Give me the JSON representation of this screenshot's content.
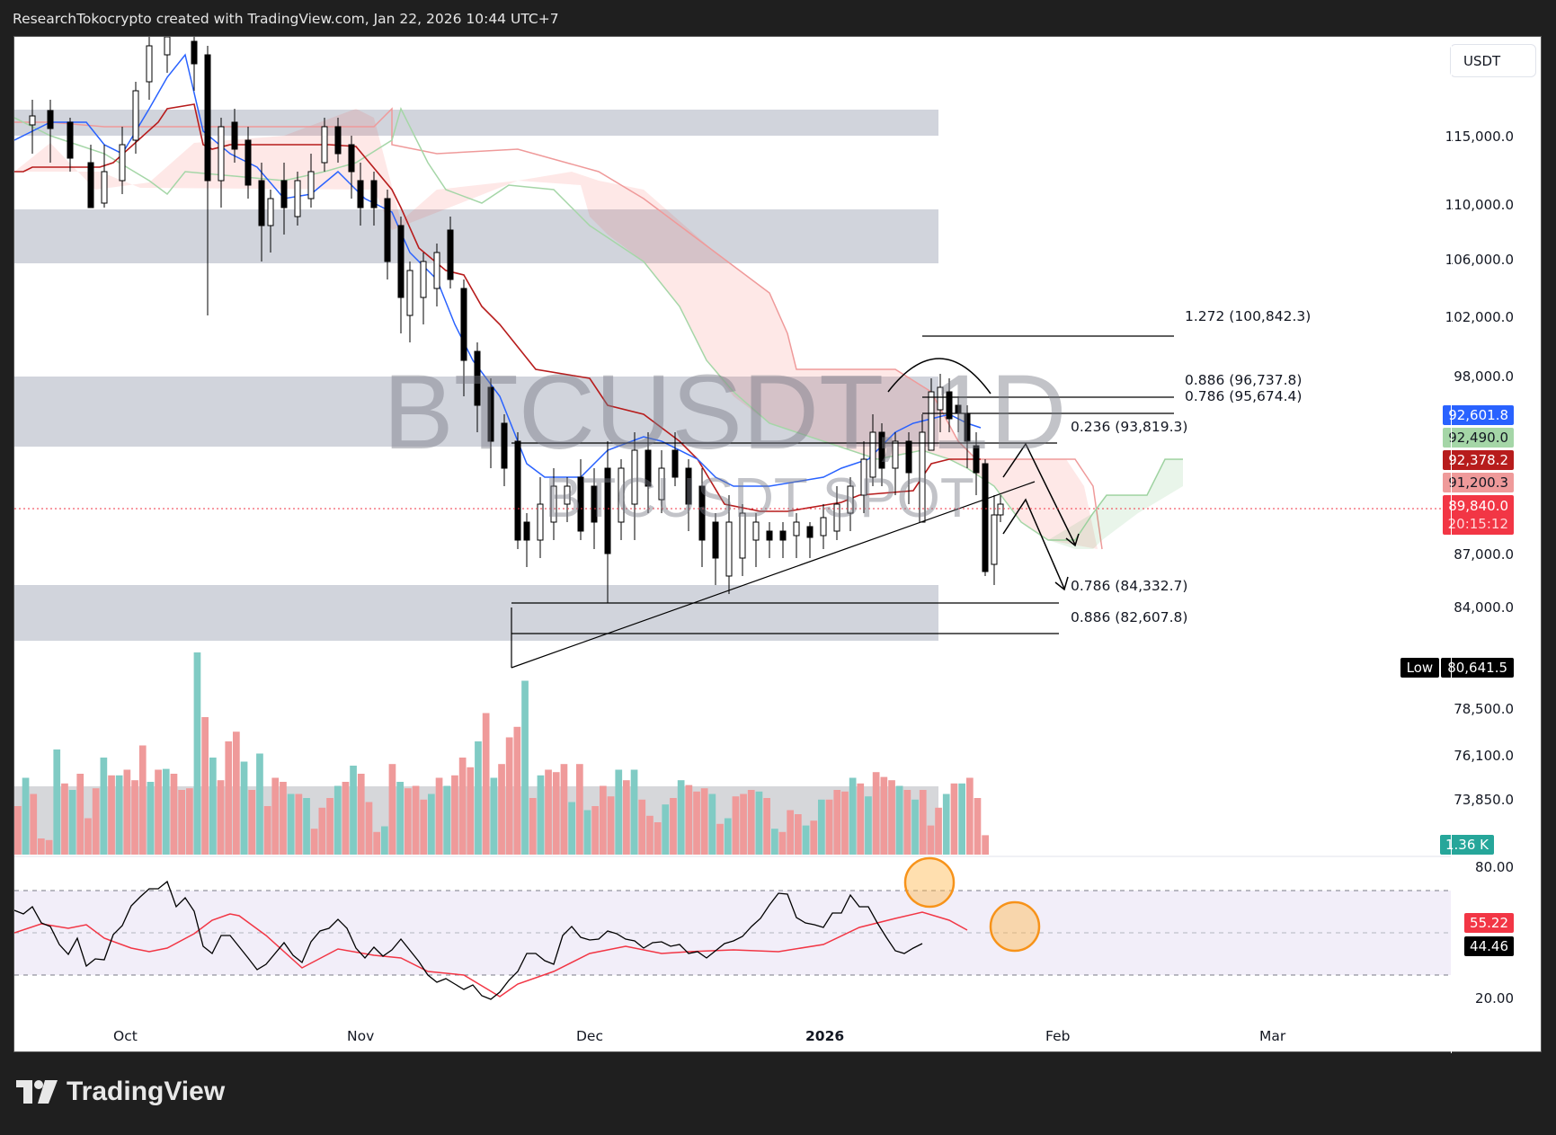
{
  "header": {
    "attribution": "ResearchTokocrypto created with TradingView.com, Jan 22, 2026 10:44 UTC+7"
  },
  "chart": {
    "symbol_watermark": "BTCUSDT, 1D",
    "symbol_subtitle": "BTCUSDT SPOT",
    "currency_button": "USDT",
    "price_axis": [
      "115,000.0",
      "110,000.0",
      "106,000.0",
      "102,000.0",
      "98,000.0",
      "87,000.0",
      "84,000.0",
      "78,500.0",
      "76,100.0",
      "73,850.0"
    ],
    "price_tags": [
      {
        "label": "92,601.8",
        "color": "#2962ff",
        "text": "#ffffff"
      },
      {
        "label": "92,490.0",
        "color": "#a5d6a7",
        "text": "#131722"
      },
      {
        "label": "92,378.2",
        "color": "#b71c1c",
        "text": "#ffffff"
      },
      {
        "label": "91,200.3",
        "color": "#ef9a9a",
        "text": "#131722"
      },
      {
        "label": "89,840.0",
        "color": "#f23645",
        "text": "#ffffff"
      },
      {
        "label": "20:15:12",
        "color": "#f23645",
        "text": "#ffd6d9"
      }
    ],
    "low_tag": {
      "label": "Low",
      "value": "80,641.5"
    },
    "volume_tag": "1.36 K",
    "rsi_axis": [
      "80.00",
      "20.00"
    ],
    "rsi_tags": [
      {
        "label": "55.22",
        "color": "#f23645"
      },
      {
        "label": "44.46",
        "color": "#000000"
      }
    ],
    "time_axis": [
      "Oct",
      "Nov",
      "Dec",
      "2026",
      "Feb",
      "Mar"
    ],
    "fib_labels": [
      "1.272 (100,842.3)",
      "0.886 (96,737.8)",
      "0.786 (95,674.4)",
      "0.236 (93,819.3)",
      "0.786 (84,332.7)",
      "0.886 (82,607.8)"
    ]
  },
  "footer": {
    "brand": "TradingView"
  },
  "chart_data": {
    "type": "candlestick",
    "title": "BTCUSDT, 1D",
    "subtitle": "BTCUSDT SPOT",
    "currency": "USDT",
    "x_ticks": [
      "Oct",
      "Nov",
      "Dec",
      "2026",
      "Feb",
      "Mar"
    ],
    "y_ticks": [
      73850,
      76100,
      78500,
      84000,
      87000,
      98000,
      102000,
      106000,
      110000,
      115000
    ],
    "last_price": 89840.0,
    "countdown": "20:15:12",
    "period_low": 80641.5,
    "ichimoku": {
      "conversion_line": 92601.8,
      "leading_span_a": 92490.0,
      "base_line": 92378.2,
      "leading_span_b": 91200.3
    },
    "fibonacci_levels": [
      {
        "ratio": 1.272,
        "price": 100842.3
      },
      {
        "ratio": 0.886,
        "price": 96737.8
      },
      {
        "ratio": 0.786,
        "price": 95674.4
      },
      {
        "ratio": 0.236,
        "price": 93819.3
      },
      {
        "ratio": 0.786,
        "price": 84332.7
      },
      {
        "ratio": 0.886,
        "price": 82607.8
      }
    ],
    "resistance_zones": [
      [
        115000,
        117000
      ],
      [
        105800,
        109500
      ],
      [
        93800,
        98800
      ]
    ],
    "support_zones": [
      [
        81800,
        85600
      ]
    ],
    "volume_last": "1.36K",
    "rsi": {
      "value": 44.46,
      "ma": 55.22,
      "upper": 70,
      "middle": 50,
      "lower": 30,
      "axis": [
        20,
        80
      ]
    },
    "approx_closes": [
      {
        "date": "Sep 20",
        "close": 116000
      },
      {
        "date": "Oct 1",
        "close": 118500
      },
      {
        "date": "Oct 6",
        "close": 124500
      },
      {
        "date": "Oct 10",
        "close": 112800
      },
      {
        "date": "Oct 17",
        "close": 106500
      },
      {
        "date": "Oct 27",
        "close": 114000
      },
      {
        "date": "Nov 4",
        "close": 101500
      },
      {
        "date": "Nov 11",
        "close": 103000
      },
      {
        "date": "Nov 18",
        "close": 92000
      },
      {
        "date": "Nov 21",
        "close": 84500
      },
      {
        "date": "Nov 27",
        "close": 91000
      },
      {
        "date": "Dec 1",
        "close": 86500
      },
      {
        "date": "Dec 9",
        "close": 92500
      },
      {
        "date": "Dec 18",
        "close": 85500
      },
      {
        "date": "Dec 31",
        "close": 87700
      },
      {
        "date": "Jan 6",
        "close": 93700
      },
      {
        "date": "Jan 14",
        "close": 96800
      },
      {
        "date": "Jan 20",
        "close": 88300
      },
      {
        "date": "Jan 22",
        "close": 89840
      }
    ]
  }
}
